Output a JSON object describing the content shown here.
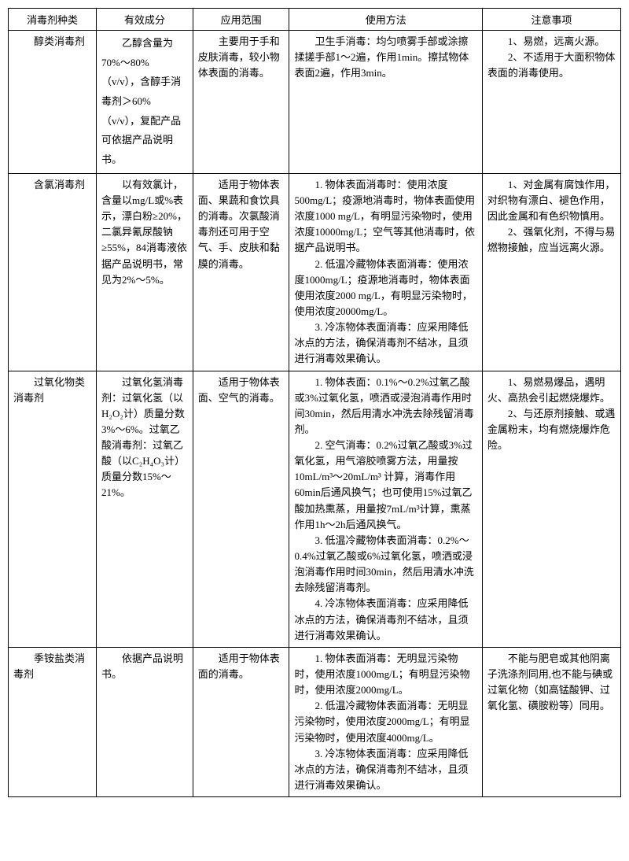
{
  "headers": [
    "消毒剂种类",
    "有效成分",
    "应用范围",
    "使用方法",
    "注意事项"
  ],
  "rows": [
    {
      "type": "醇类消毒剂",
      "ingredient": "乙醇含量为70%～80%（v/v），含醇手消毒剂＞60%（v/v），复配产品可依据产品说明书。",
      "scope": "主要用于手和皮肤消毒，较小物体表面的消毒。",
      "method": [
        "卫生手消毒：均匀喷雾手部或涂擦揉搓手部1～2遍，作用1min。擦拭物体表面2遍，作用3min。"
      ],
      "notes": [
        "1、易燃，远离火源。",
        "2、不适用于大面积物体表面的消毒使用。"
      ]
    },
    {
      "type": "含氯消毒剂",
      "ingredient": "以有效氯计，含量以mg/L或%表示，漂白粉≥20%，二氯异氰尿酸钠≥55%，84消毒液依据产品说明书，常见为2%～5%。",
      "scope": "适用于物体表面、果蔬和食饮具的消毒。次氯酸消毒剂还可用于空气、手、皮肤和黏膜的消毒。",
      "method": [
        "1. 物体表面消毒时：使用浓度500mg/L；疫源地消毒时，物体表面使用浓度1000 mg/L，有明显污染物时，使用浓度10000mg/L；空气等其他消毒时，依据产品说明书。",
        "2. 低温冷藏物体表面消毒：使用浓度1000mg/L；疫源地消毒时，物体表面使用浓度2000 mg/L，有明显污染物时，使用浓度20000mg/L。",
        "3. 冷冻物体表面消毒：应采用降低冰点的方法，确保消毒剂不结冰，且须进行消毒效果确认。"
      ],
      "notes": [
        "1、对金属有腐蚀作用，对织物有漂白、褪色作用，因此金属和有色织物慎用。",
        "2、强氧化剂，不得与易燃物接触，应当远离火源。"
      ]
    },
    {
      "type": "过氧化物类消毒剂",
      "ingredient": "过氧化氢消毒剂：过氧化氢（以H₂O₂计）质量分数3%～6%。过氧乙酸消毒剂：过氧乙酸（以C₂H₄O₃计）质量分数15%～21%。",
      "scope": "适用于物体表面、空气的消毒。",
      "method": [
        "1. 物体表面：0.1%～0.2%过氧乙酸或3%过氧化氢，喷洒或浸泡消毒作用时间30min，然后用清水冲洗去除残留消毒剂。",
        "2. 空气消毒：0.2%过氧乙酸或3%过氧化氢，用气溶胶喷雾方法，用量按10mL/m³～20mL/m³ 计算，消毒作用60min后通风换气；也可使用15%过氧乙酸加热熏蒸，用量按7mL/m³计算，熏蒸作用1h～2h后通风换气。",
        "3. 低温冷藏物体表面消毒：0.2%～0.4%过氧乙酸或6%过氧化氢，喷洒或浸泡消毒作用时间30min，然后用清水冲洗去除残留消毒剂。",
        "4. 冷冻物体表面消毒：应采用降低冰点的方法，确保消毒剂不结冰，且须进行消毒效果确认。"
      ],
      "notes": [
        "1、易燃易爆品，遇明火、高热会引起燃烧爆炸。",
        "2、与还原剂接触、或遇金属粉末，均有燃烧爆炸危险。"
      ]
    },
    {
      "type": "季铵盐类消毒剂",
      "ingredient": "依据产品说明书。",
      "scope": "适用于物体表面的消毒。",
      "method": [
        "1. 物体表面消毒：无明显污染物时，使用浓度1000mg/L；有明显污染物时，使用浓度2000mg/L。",
        "2. 低温冷藏物体表面消毒：无明显污染物时，使用浓度2000mg/L；有明显污染物时，使用浓度4000mg/L。",
        "3. 冷冻物体表面消毒：应采用降低冰点的方法，确保消毒剂不结冰，且须进行消毒效果确认。"
      ],
      "notes": [
        "不能与肥皂或其他阴离子洗涤剂同用,也不能与碘或过氧化物（如高锰酸钾、过氧化氢、磺胺粉等）同用。"
      ]
    }
  ]
}
